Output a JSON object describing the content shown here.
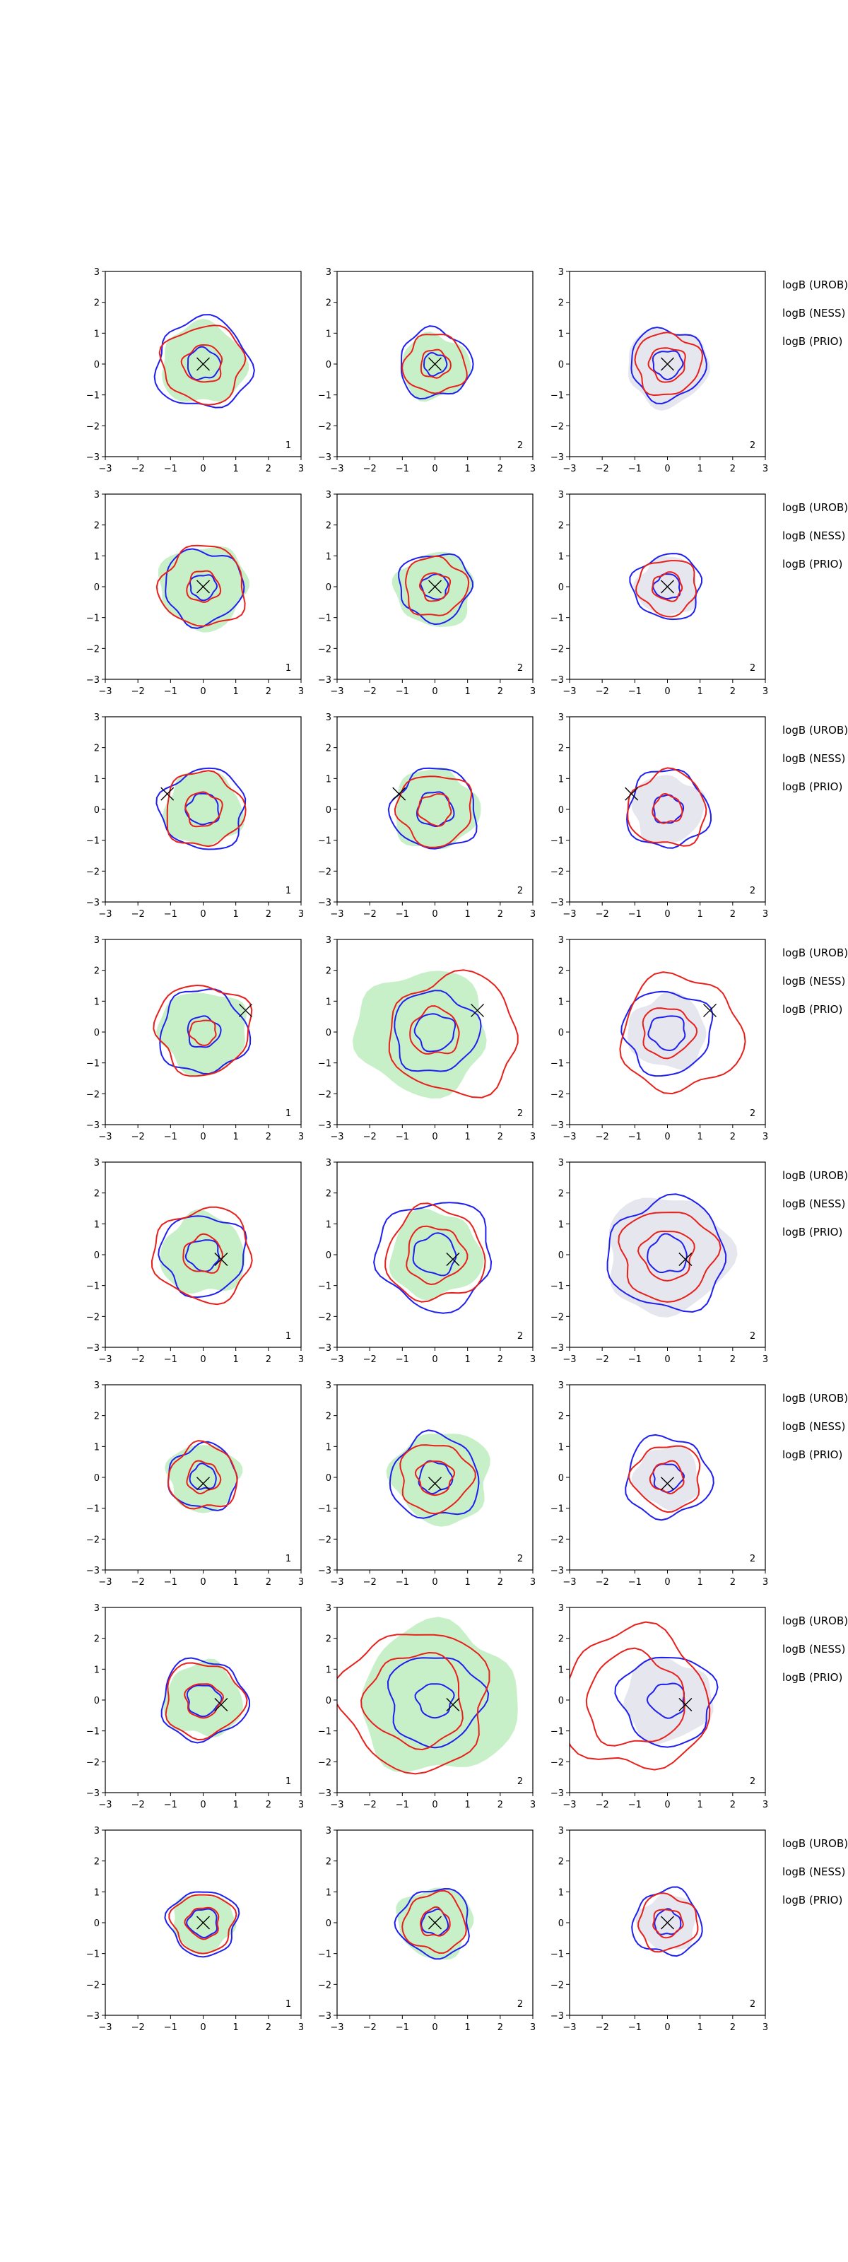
{
  "colors": {
    "method_a": "#1f1ff0",
    "method_b": "#e8201c",
    "fill_green": "#c8f0c8",
    "fill_grey": "#e6e6ee",
    "marker": "#000000"
  },
  "row_labels": [
    [
      "logB (UROB)",
      "logB (NESS)",
      "logB (PRIO)"
    ],
    [
      "logB (UROB)",
      "logB (NESS)",
      "logB (PRIO)"
    ],
    [
      "logB (UROB)",
      "logB (NESS)",
      "logB (PRIO)"
    ],
    [
      "logB (UROB)",
      "logB (NESS)",
      "logB (PRIO)"
    ],
    [
      "logB (UROB)",
      "logB (NESS)",
      "logB (PRIO)"
    ],
    [
      "logB (UROB)",
      "logB (NESS)",
      "logB (PRIO)"
    ],
    [
      "logB (UROB)",
      "logB (NESS)",
      "logB (PRIO)"
    ],
    [
      "logB (UROB)",
      "logB (NESS)",
      "logB (PRIO)"
    ]
  ],
  "chart_data": {
    "type": "contour",
    "layout": {
      "rows": 8,
      "cols": 3
    },
    "xlim": [
      -3,
      3
    ],
    "ylim": [
      -3,
      3
    ],
    "xticks": [
      "−3",
      "−2",
      "−1",
      "0",
      "1",
      "2",
      "3"
    ],
    "yticks": [
      "3",
      "2",
      "1",
      "0",
      "−1",
      "−2",
      "−3"
    ],
    "column_corner_labels": [
      "1",
      "2",
      "2"
    ],
    "column_fill": [
      "green",
      "green",
      "grey"
    ],
    "panels": [
      [
        {
          "marker": [
            0,
            0
          ],
          "fill": {
            "cx": 0,
            "cy": 0,
            "r": 1.3
          },
          "blue": [
            {
              "cx": 0,
              "cy": 0,
              "r": 1.45
            },
            {
              "cx": 0,
              "cy": 0,
              "r": 0.5
            }
          ],
          "red": [
            {
              "cx": 0,
              "cy": 0,
              "r": 1.25
            },
            {
              "cx": 0,
              "cy": 0,
              "r": 0.6
            }
          ]
        },
        {
          "marker": [
            0,
            0
          ],
          "fill": {
            "cx": 0,
            "cy": -0.1,
            "r": 1.05
          },
          "blue": [
            {
              "cx": 0,
              "cy": 0,
              "r": 1.1
            },
            {
              "cx": 0,
              "cy": 0,
              "r": 0.35
            }
          ],
          "red": [
            {
              "cx": 0,
              "cy": 0,
              "r": 0.95
            },
            {
              "cx": 0,
              "cy": 0,
              "r": 0.45
            }
          ]
        },
        {
          "marker": [
            0,
            0
          ],
          "fill": {
            "cx": 0,
            "cy": -0.1,
            "r": 1.25
          },
          "blue": [
            {
              "cx": 0,
              "cy": 0,
              "r": 1.15
            },
            {
              "cx": 0,
              "cy": 0,
              "r": 0.45
            }
          ],
          "red": [
            {
              "cx": 0,
              "cy": 0,
              "r": 1.0
            },
            {
              "cx": 0,
              "cy": 0,
              "r": 0.55
            }
          ]
        }
      ],
      [
        {
          "marker": [
            0,
            0
          ],
          "fill": {
            "cx": 0,
            "cy": 0,
            "r": 1.35
          },
          "blue": [
            {
              "cx": 0,
              "cy": 0,
              "r": 1.2
            },
            {
              "cx": 0,
              "cy": 0,
              "r": 0.4
            }
          ],
          "red": [
            {
              "cx": 0,
              "cy": 0,
              "r": 1.3
            },
            {
              "cx": 0,
              "cy": 0,
              "r": 0.5
            }
          ]
        },
        {
          "marker": [
            0,
            0
          ],
          "fill": {
            "cx": 0,
            "cy": -0.1,
            "r": 1.2
          },
          "blue": [
            {
              "cx": 0,
              "cy": 0,
              "r": 1.1
            },
            {
              "cx": 0,
              "cy": 0,
              "r": 0.4
            }
          ],
          "red": [
            {
              "cx": 0,
              "cy": 0,
              "r": 0.95
            },
            {
              "cx": 0,
              "cy": 0,
              "r": 0.45
            }
          ]
        },
        {
          "marker": [
            0,
            0
          ],
          "fill": {
            "cx": 0,
            "cy": 0,
            "r": 0.95
          },
          "blue": [
            {
              "cx": 0,
              "cy": 0,
              "r": 1.05
            },
            {
              "cx": 0,
              "cy": 0,
              "r": 0.4
            }
          ],
          "red": [
            {
              "cx": 0,
              "cy": 0,
              "r": 0.9
            },
            {
              "cx": 0,
              "cy": 0,
              "r": 0.45
            }
          ]
        }
      ],
      [
        {
          "marker": [
            -1.1,
            0.5
          ],
          "fill": {
            "cx": 0,
            "cy": 0,
            "r": 1.2
          },
          "blue": [
            {
              "cx": 0,
              "cy": 0,
              "r": 1.3
            },
            {
              "cx": 0,
              "cy": 0,
              "r": 0.5
            }
          ],
          "red": [
            {
              "cx": 0,
              "cy": 0,
              "r": 1.2
            },
            {
              "cx": 0,
              "cy": 0,
              "r": 0.55
            }
          ]
        },
        {
          "marker": [
            -1.1,
            0.5
          ],
          "fill": {
            "cx": 0,
            "cy": 0,
            "r": 1.3
          },
          "blue": [
            {
              "cx": 0,
              "cy": 0,
              "r": 1.3
            },
            {
              "cx": 0,
              "cy": 0,
              "r": 0.55
            }
          ],
          "red": [
            {
              "cx": 0,
              "cy": 0,
              "r": 1.15
            },
            {
              "cx": 0,
              "cy": 0,
              "r": 0.5
            }
          ]
        },
        {
          "marker": [
            -1.1,
            0.5
          ],
          "fill": {
            "cx": 0,
            "cy": 0,
            "r": 1.1
          },
          "blue": [
            {
              "cx": 0,
              "cy": 0,
              "r": 1.25
            },
            {
              "cx": 0,
              "cy": 0,
              "r": 0.45
            }
          ],
          "red": [
            {
              "cx": 0,
              "cy": 0,
              "r": 1.2
            },
            {
              "cx": 0,
              "cy": 0,
              "r": 0.45
            }
          ]
        }
      ],
      [
        {
          "marker": [
            1.3,
            0.7
          ],
          "fill": {
            "cx": 0,
            "cy": 0,
            "r": 1.35
          },
          "blue": [
            {
              "cx": 0,
              "cy": 0,
              "r": 1.35
            },
            {
              "cx": 0,
              "cy": 0,
              "r": 0.5
            }
          ],
          "red": [
            {
              "cx": 0,
              "cy": 0.1,
              "r": 1.45
            },
            {
              "cx": 0,
              "cy": 0,
              "r": 0.4
            }
          ]
        },
        {
          "marker": [
            1.3,
            0.7
          ],
          "fill": {
            "cx": -0.4,
            "cy": 0,
            "r": 2.0
          },
          "blue": [
            {
              "cx": 0,
              "cy": 0,
              "r": 1.3
            },
            {
              "cx": 0,
              "cy": 0,
              "r": 0.6
            }
          ],
          "red": [
            {
              "cx": 0.6,
              "cy": -0.1,
              "r": 1.95
            },
            {
              "cx": 0,
              "cy": 0,
              "r": 0.75
            }
          ]
        },
        {
          "marker": [
            1.3,
            0.7
          ],
          "fill": {
            "cx": 0,
            "cy": 0,
            "r": 1.2
          },
          "blue": [
            {
              "cx": 0,
              "cy": 0,
              "r": 1.35
            },
            {
              "cx": 0,
              "cy": 0,
              "r": 0.55
            }
          ],
          "red": [
            {
              "cx": 0.4,
              "cy": -0.05,
              "r": 1.85
            },
            {
              "cx": 0,
              "cy": 0,
              "r": 0.8
            }
          ]
        }
      ],
      [
        {
          "marker": [
            0.55,
            -0.15
          ],
          "fill": {
            "cx": 0,
            "cy": 0,
            "r": 1.3
          },
          "blue": [
            {
              "cx": 0,
              "cy": 0,
              "r": 1.3
            },
            {
              "cx": 0,
              "cy": 0,
              "r": 0.5
            }
          ],
          "red": [
            {
              "cx": 0,
              "cy": 0,
              "r": 1.5
            },
            {
              "cx": 0,
              "cy": 0,
              "r": 0.6
            }
          ]
        },
        {
          "marker": [
            0.55,
            -0.15
          ],
          "fill": {
            "cx": 0,
            "cy": 0,
            "r": 1.4
          },
          "blue": [
            {
              "cx": 0,
              "cy": 0,
              "r": 1.75
            },
            {
              "cx": 0,
              "cy": 0,
              "r": 0.65
            }
          ],
          "red": [
            {
              "cx": 0,
              "cy": 0,
              "r": 1.5
            },
            {
              "cx": 0,
              "cy": 0,
              "r": 0.9
            }
          ]
        },
        {
          "marker": [
            0.55,
            -0.15
          ],
          "fill": {
            "cx": 0,
            "cy": 0,
            "r": 1.9
          },
          "blue": [
            {
              "cx": 0,
              "cy": 0,
              "r": 1.8
            },
            {
              "cx": 0,
              "cy": 0,
              "r": 0.6
            }
          ],
          "red": [
            {
              "cx": 0,
              "cy": 0,
              "r": 1.45
            },
            {
              "cx": 0,
              "cy": 0,
              "r": 0.8
            }
          ]
        }
      ],
      [
        {
          "marker": [
            0,
            -0.2
          ],
          "fill": {
            "cx": 0,
            "cy": 0,
            "r": 1.1
          },
          "blue": [
            {
              "cx": 0,
              "cy": 0,
              "r": 1.05
            },
            {
              "cx": 0,
              "cy": 0,
              "r": 0.4
            }
          ],
          "red": [
            {
              "cx": 0,
              "cy": 0,
              "r": 1.05
            },
            {
              "cx": 0,
              "cy": 0,
              "r": 0.5
            }
          ]
        },
        {
          "marker": [
            0,
            -0.2
          ],
          "fill": {
            "cx": 0.2,
            "cy": 0,
            "r": 1.5
          },
          "blue": [
            {
              "cx": 0,
              "cy": 0,
              "r": 1.35
            },
            {
              "cx": 0,
              "cy": 0,
              "r": 0.5
            }
          ],
          "red": [
            {
              "cx": 0,
              "cy": 0,
              "r": 1.1
            },
            {
              "cx": 0,
              "cy": 0,
              "r": 0.55
            }
          ]
        },
        {
          "marker": [
            0,
            -0.2
          ],
          "fill": {
            "cx": 0,
            "cy": 0,
            "r": 1.0
          },
          "blue": [
            {
              "cx": 0,
              "cy": 0,
              "r": 1.3
            },
            {
              "cx": 0,
              "cy": 0,
              "r": 0.45
            }
          ],
          "red": [
            {
              "cx": 0,
              "cy": 0,
              "r": 1.05
            },
            {
              "cx": 0,
              "cy": 0,
              "r": 0.5
            }
          ]
        }
      ],
      [
        {
          "marker": [
            0.55,
            -0.15
          ],
          "fill": {
            "cx": 0,
            "cy": 0,
            "r": 1.2
          },
          "blue": [
            {
              "cx": 0,
              "cy": 0,
              "r": 1.3
            },
            {
              "cx": 0,
              "cy": 0,
              "r": 0.5
            }
          ],
          "red": [
            {
              "cx": 0,
              "cy": 0,
              "r": 1.2
            },
            {
              "cx": 0,
              "cy": 0,
              "r": 0.55
            }
          ]
        },
        {
          "marker": [
            0.55,
            -0.15
          ],
          "fill": {
            "cx": 0.1,
            "cy": 0,
            "r": 2.4
          },
          "blue": [
            {
              "cx": 0,
              "cy": 0,
              "r": 1.45
            },
            {
              "cx": 0,
              "cy": 0,
              "r": 0.55
            }
          ],
          "red": [
            {
              "cx": -0.6,
              "cy": 0,
              "r": 2.25
            },
            {
              "cx": -0.6,
              "cy": 0,
              "r": 1.5
            }
          ]
        },
        {
          "marker": [
            0.55,
            -0.15
          ],
          "fill": {
            "cx": 0,
            "cy": 0,
            "r": 1.35
          },
          "blue": [
            {
              "cx": 0,
              "cy": 0,
              "r": 1.45
            },
            {
              "cx": 0,
              "cy": 0,
              "r": 0.55
            }
          ],
          "red": [
            {
              "cx": -1.0,
              "cy": 0,
              "r": 2.25
            },
            {
              "cx": -1.0,
              "cy": 0,
              "r": 1.5
            }
          ]
        }
      ],
      [
        {
          "marker": [
            0,
            0
          ],
          "fill": {
            "cx": 0,
            "cy": 0,
            "r": 0.95
          },
          "blue": [
            {
              "cx": 0,
              "cy": 0,
              "r": 1.05
            },
            {
              "cx": 0,
              "cy": 0,
              "r": 0.45
            }
          ],
          "red": [
            {
              "cx": 0,
              "cy": 0,
              "r": 0.95
            },
            {
              "cx": 0,
              "cy": 0,
              "r": 0.5
            }
          ]
        },
        {
          "marker": [
            0,
            0
          ],
          "fill": {
            "cx": 0,
            "cy": 0,
            "r": 1.15
          },
          "blue": [
            {
              "cx": 0,
              "cy": 0,
              "r": 1.1
            },
            {
              "cx": 0,
              "cy": 0,
              "r": 0.4
            }
          ],
          "red": [
            {
              "cx": 0,
              "cy": 0,
              "r": 0.95
            },
            {
              "cx": 0,
              "cy": 0,
              "r": 0.45
            }
          ]
        },
        {
          "marker": [
            0,
            0
          ],
          "fill": {
            "cx": 0,
            "cy": 0,
            "r": 0.9
          },
          "blue": [
            {
              "cx": 0,
              "cy": 0,
              "r": 1.05
            },
            {
              "cx": 0,
              "cy": 0,
              "r": 0.4
            }
          ],
          "red": [
            {
              "cx": 0,
              "cy": 0,
              "r": 0.9
            },
            {
              "cx": 0,
              "cy": 0,
              "r": 0.45
            }
          ]
        }
      ]
    ]
  }
}
